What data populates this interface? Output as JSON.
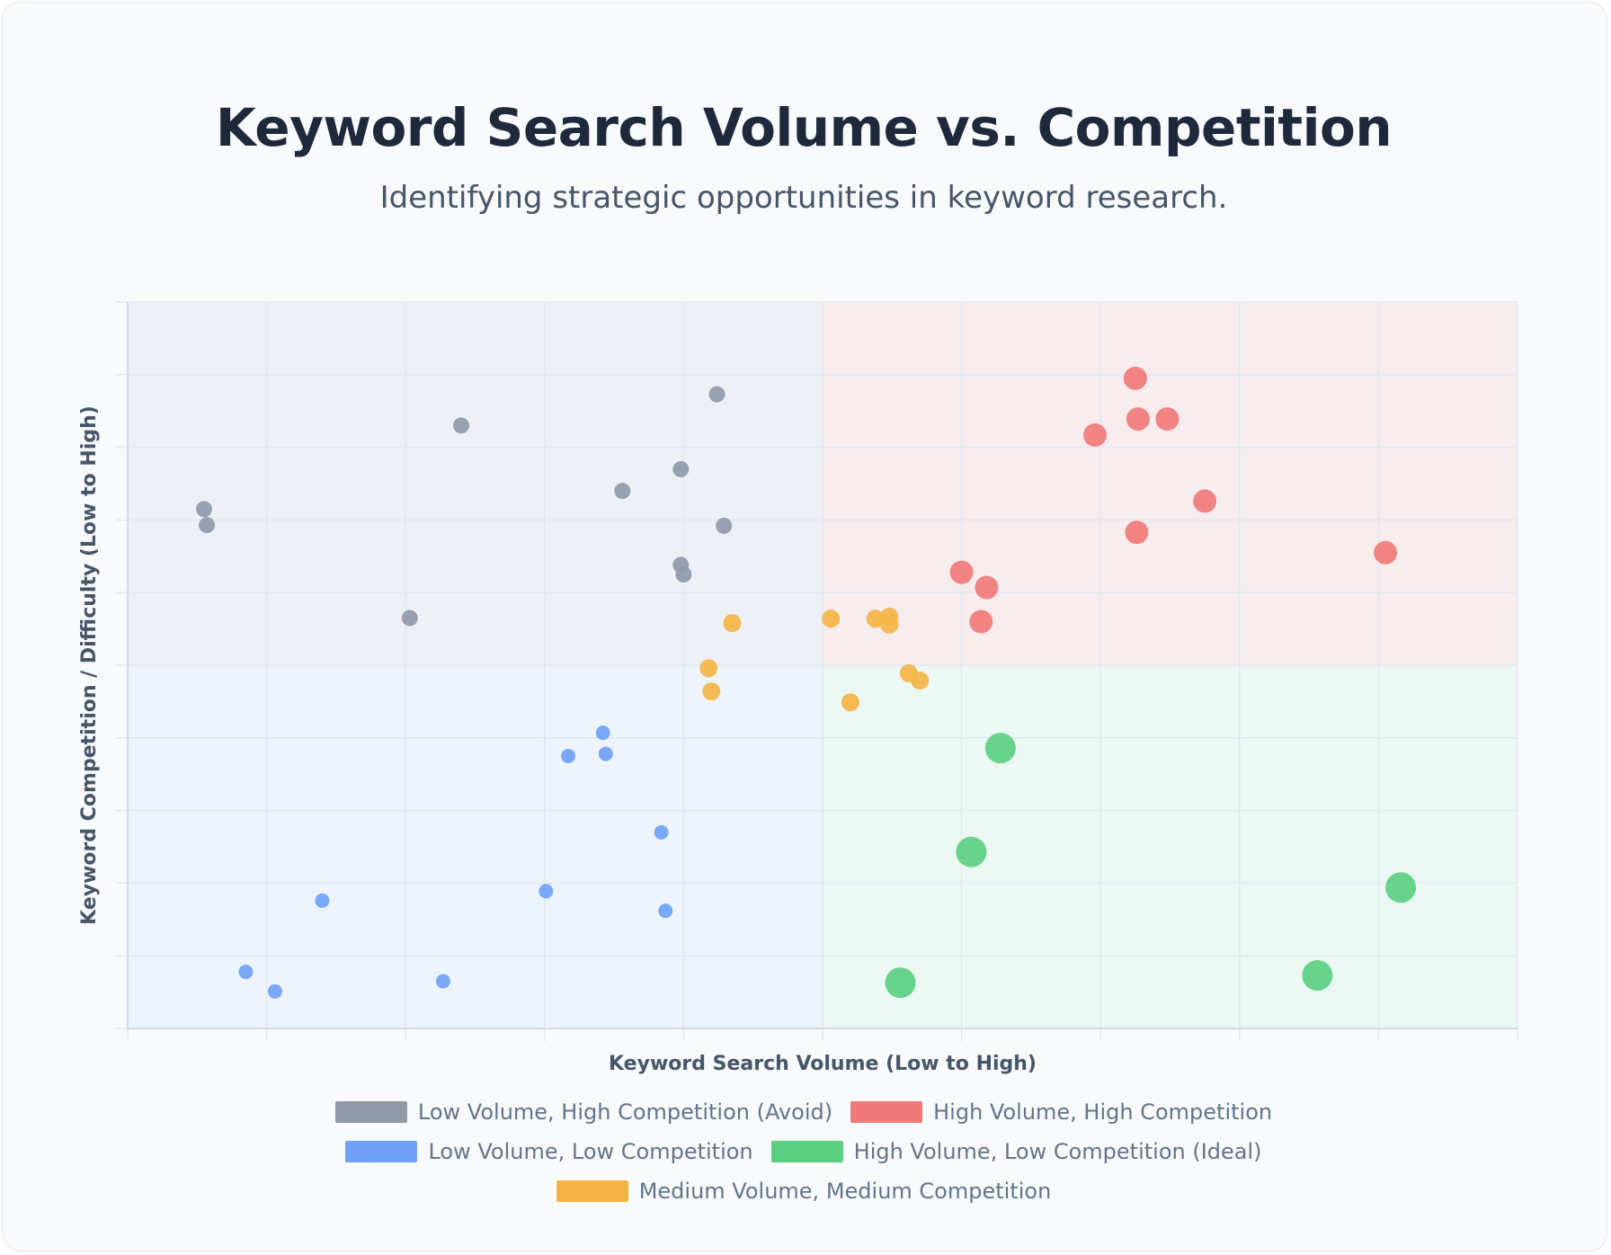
{
  "header": {
    "title": "Keyword Search Volume vs. Competition",
    "subtitle": "Identifying strategic opportunities in keyword research."
  },
  "chart_data": {
    "type": "scatter",
    "xlabel": "Keyword Search Volume (Low to High)",
    "ylabel": "Keyword Competition / Difficulty (Low to High)",
    "xlim": [
      0,
      100
    ],
    "ylim": [
      0,
      100
    ],
    "x_ticks": 10,
    "y_ticks": 10,
    "grid": true,
    "legend_position": "bottom",
    "quadrants": [
      {
        "x0": 0,
        "x1": 50,
        "y0": 50,
        "y1": 100,
        "color": "#94a3b8"
      },
      {
        "x0": 50,
        "x1": 100,
        "y0": 50,
        "y1": 100,
        "color": "#f87171"
      },
      {
        "x0": 0,
        "x1": 50,
        "y0": 0,
        "y1": 50,
        "color": "#93c5fd"
      },
      {
        "x0": 50,
        "x1": 100,
        "y0": 0,
        "y1": 50,
        "color": "#86efac"
      }
    ],
    "series": [
      {
        "name": "Low Volume, High Competition (Avoid)",
        "color": "#8f99a8",
        "radius": 9,
        "points": [
          [
            5.5,
            71.5
          ],
          [
            5.7,
            69.3
          ],
          [
            24.0,
            83.0
          ],
          [
            20.3,
            56.5
          ],
          [
            35.6,
            74.0
          ],
          [
            39.8,
            77.0
          ],
          [
            42.4,
            87.3
          ],
          [
            39.8,
            63.8
          ],
          [
            40.0,
            62.5
          ],
          [
            42.9,
            69.2
          ]
        ]
      },
      {
        "name": "High Volume, High Competition",
        "color": "#f07a7a",
        "radius": 13,
        "points": [
          [
            72.5,
            89.5
          ],
          [
            69.6,
            81.7
          ],
          [
            72.7,
            83.9
          ],
          [
            74.8,
            83.9
          ],
          [
            77.5,
            72.6
          ],
          [
            72.6,
            68.3
          ],
          [
            60.0,
            62.8
          ],
          [
            61.8,
            60.7
          ],
          [
            61.4,
            56.0
          ],
          [
            90.5,
            65.5
          ]
        ]
      },
      {
        "name": "Low Volume, Low Competition",
        "color": "#6fa1f7",
        "radius": 8,
        "points": [
          [
            8.5,
            7.8
          ],
          [
            10.6,
            5.1
          ],
          [
            14.0,
            17.6
          ],
          [
            22.7,
            6.5
          ],
          [
            30.1,
            18.9
          ],
          [
            31.7,
            37.5
          ],
          [
            34.2,
            40.7
          ],
          [
            34.4,
            37.8
          ],
          [
            38.4,
            27.0
          ],
          [
            38.7,
            16.2
          ]
        ]
      },
      {
        "name": "High Volume, Low Competition (Ideal)",
        "color": "#5ccf82",
        "radius": 17,
        "points": [
          [
            62.8,
            38.6
          ],
          [
            60.7,
            24.3
          ],
          [
            55.6,
            6.3
          ],
          [
            91.6,
            19.4
          ],
          [
            85.6,
            7.3
          ]
        ]
      },
      {
        "name": "Medium Volume, Medium Competition",
        "color": "#f3b444",
        "radius": 10,
        "points": [
          [
            43.5,
            55.8
          ],
          [
            41.8,
            49.6
          ],
          [
            42.0,
            46.4
          ],
          [
            50.6,
            56.4
          ],
          [
            53.8,
            56.4
          ],
          [
            54.8,
            56.7
          ],
          [
            54.8,
            55.6
          ],
          [
            56.2,
            48.9
          ],
          [
            57.0,
            47.9
          ],
          [
            52.0,
            44.9
          ]
        ]
      }
    ]
  }
}
